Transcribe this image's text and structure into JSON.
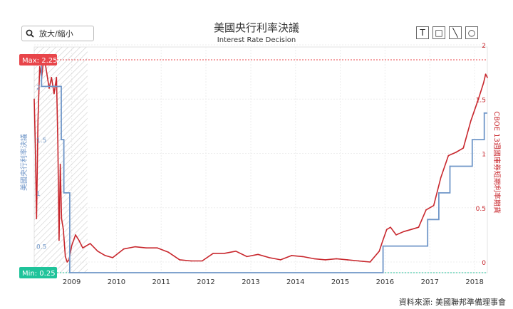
{
  "header": {
    "title": "美國央行利率決議",
    "subtitle": "Interest Rate Decision"
  },
  "toolbar": {
    "zoom_label": "放大/縮小",
    "tools": [
      {
        "name": "text-tool",
        "glyph": "T"
      },
      {
        "name": "rectangle-tool",
        "glyph": "□"
      },
      {
        "name": "line-tool",
        "glyph": "╲"
      },
      {
        "name": "circle-tool",
        "glyph": "○"
      }
    ]
  },
  "badges": {
    "max_label": "Max: 2.25",
    "min_label": "Min: 0.25"
  },
  "source": "資料來源: 美國聯邦準備理事會",
  "colors": {
    "fed_rate": "#6f96c8",
    "cboe_rate": "#c8272d",
    "max_badge": "#e8454a",
    "min_badge": "#1fc39a"
  },
  "chart_data": {
    "type": "line",
    "xlim": [
      "2008-03-01",
      "2018-04-15"
    ],
    "x_ticks": [
      "2009",
      "2010",
      "2011",
      "2012",
      "2013",
      "2014",
      "2015",
      "2016",
      "2017",
      "2018"
    ],
    "left_axis": {
      "label": "美國央行利率決議",
      "ylim": [
        0,
        2.25
      ],
      "ticks": [
        "0.5",
        "1",
        "1.5",
        "2"
      ]
    },
    "right_axis": {
      "label": "CBOE 13週國庫券短期利率期貨",
      "ylim": [
        0,
        2
      ],
      "ticks": [
        "0",
        "0.5",
        "1",
        "1.5",
        "2"
      ]
    },
    "max_line": 2.25,
    "min_line": 0.25,
    "series": [
      {
        "name": "美國央行利率決議",
        "axis": "left",
        "step": true,
        "points": [
          [
            "2008-03-01",
            2.25
          ],
          [
            "2008-04-30",
            2.0
          ],
          [
            "2008-10-08",
            1.5
          ],
          [
            "2008-10-29",
            1.0
          ],
          [
            "2008-12-16",
            0.25
          ],
          [
            "2015-12-16",
            0.5
          ],
          [
            "2016-12-14",
            0.75
          ],
          [
            "2017-03-15",
            1.0
          ],
          [
            "2017-06-14",
            1.25
          ],
          [
            "2017-12-13",
            1.5
          ],
          [
            "2018-03-21",
            1.75
          ]
        ]
      },
      {
        "name": "CBOE 13週國庫券短期利率期貨",
        "axis": "right",
        "step": false,
        "points": [
          [
            "2008-03-01",
            1.5
          ],
          [
            "2008-03-10",
            1.1
          ],
          [
            "2008-03-20",
            0.4
          ],
          [
            "2008-04-01",
            1.3
          ],
          [
            "2008-04-15",
            1.8
          ],
          [
            "2008-05-01",
            1.7
          ],
          [
            "2008-05-20",
            1.9
          ],
          [
            "2008-06-10",
            1.75
          ],
          [
            "2008-07-01",
            1.6
          ],
          [
            "2008-07-20",
            1.7
          ],
          [
            "2008-08-10",
            1.55
          ],
          [
            "2008-08-30",
            1.7
          ],
          [
            "2008-09-10",
            1.1
          ],
          [
            "2008-09-20",
            0.2
          ],
          [
            "2008-09-30",
            0.9
          ],
          [
            "2008-10-10",
            0.4
          ],
          [
            "2008-10-25",
            0.3
          ],
          [
            "2008-11-10",
            0.05
          ],
          [
            "2008-11-25",
            0.0
          ],
          [
            "2008-12-10",
            0.02
          ],
          [
            "2009-01-01",
            0.15
          ],
          [
            "2009-02-01",
            0.25
          ],
          [
            "2009-03-01",
            0.2
          ],
          [
            "2009-04-01",
            0.13
          ],
          [
            "2009-06-01",
            0.17
          ],
          [
            "2009-08-01",
            0.1
          ],
          [
            "2009-10-01",
            0.06
          ],
          [
            "2009-12-01",
            0.04
          ],
          [
            "2010-03-01",
            0.12
          ],
          [
            "2010-06-01",
            0.14
          ],
          [
            "2010-09-01",
            0.13
          ],
          [
            "2010-12-01",
            0.13
          ],
          [
            "2011-03-01",
            0.09
          ],
          [
            "2011-06-01",
            0.02
          ],
          [
            "2011-09-01",
            0.01
          ],
          [
            "2011-12-01",
            0.01
          ],
          [
            "2012-03-01",
            0.08
          ],
          [
            "2012-06-01",
            0.08
          ],
          [
            "2012-09-01",
            0.1
          ],
          [
            "2012-12-01",
            0.05
          ],
          [
            "2013-03-01",
            0.07
          ],
          [
            "2013-06-01",
            0.04
          ],
          [
            "2013-09-01",
            0.02
          ],
          [
            "2013-12-01",
            0.06
          ],
          [
            "2014-03-01",
            0.05
          ],
          [
            "2014-06-01",
            0.03
          ],
          [
            "2014-09-01",
            0.02
          ],
          [
            "2014-12-01",
            0.03
          ],
          [
            "2015-03-01",
            0.02
          ],
          [
            "2015-06-01",
            0.01
          ],
          [
            "2015-09-01",
            0.0
          ],
          [
            "2015-11-15",
            0.1
          ],
          [
            "2015-12-15",
            0.2
          ],
          [
            "2016-01-15",
            0.3
          ],
          [
            "2016-02-15",
            0.32
          ],
          [
            "2016-04-01",
            0.25
          ],
          [
            "2016-06-01",
            0.28
          ],
          [
            "2016-08-01",
            0.3
          ],
          [
            "2016-10-01",
            0.32
          ],
          [
            "2016-12-01",
            0.48
          ],
          [
            "2017-02-01",
            0.52
          ],
          [
            "2017-04-01",
            0.78
          ],
          [
            "2017-06-01",
            0.98
          ],
          [
            "2017-08-01",
            1.01
          ],
          [
            "2017-10-01",
            1.05
          ],
          [
            "2017-12-01",
            1.3
          ],
          [
            "2018-02-01",
            1.5
          ],
          [
            "2018-03-15",
            1.65
          ],
          [
            "2018-04-01",
            1.73
          ],
          [
            "2018-04-15",
            1.7
          ]
        ]
      }
    ]
  }
}
